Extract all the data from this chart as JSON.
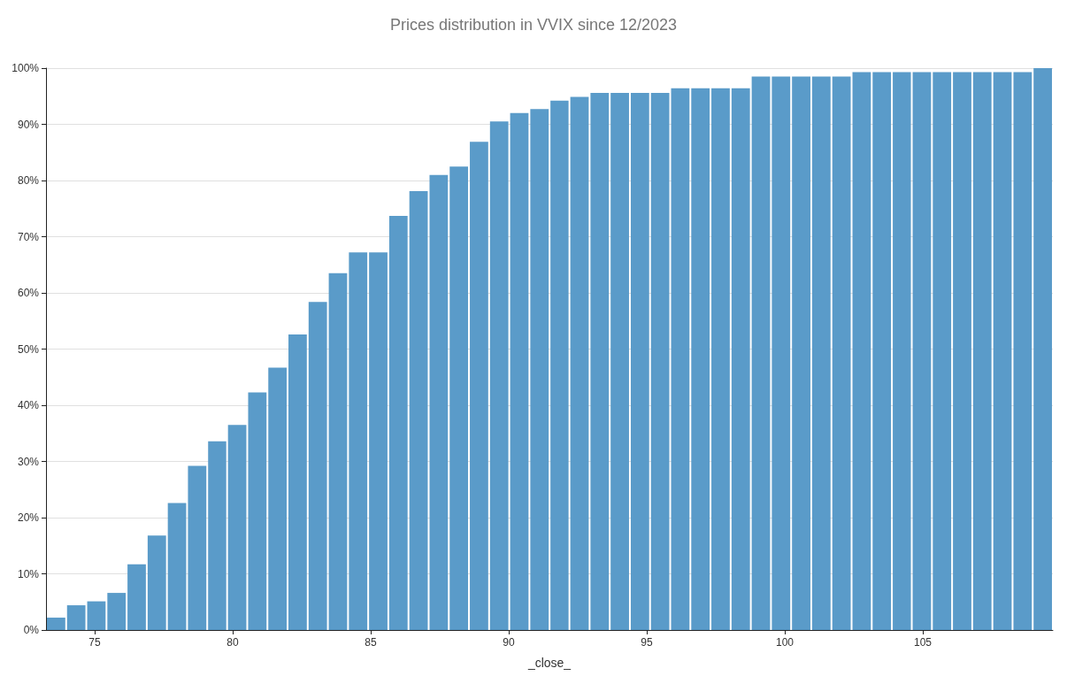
{
  "chart_data": {
    "type": "histogram",
    "title": "Prices distribution in VVIX since 12/2023",
    "xlabel": "_close_",
    "bins": [
      73.24,
      73.97,
      74.7,
      75.43,
      76.16,
      76.89,
      77.62,
      78.35,
      79.08,
      79.8,
      80.53,
      81.26,
      81.99,
      82.72,
      83.45,
      84.18,
      84.91,
      85.64,
      86.37,
      87.1,
      87.83,
      88.56,
      89.29,
      90.02,
      90.75,
      91.48,
      92.2,
      92.93,
      93.66,
      94.39,
      95.12,
      95.85,
      96.58,
      97.31,
      98.04,
      98.77,
      99.5,
      100.23,
      100.96,
      101.69,
      102.42,
      103.15,
      103.88,
      104.6,
      105.33,
      106.06,
      106.79,
      107.52,
      108.25,
      108.98,
      109.71
    ],
    "values": [
      2.2,
      4.4,
      5.1,
      6.6,
      11.7,
      16.8,
      22.6,
      29.2,
      33.6,
      36.5,
      42.3,
      46.7,
      52.6,
      58.4,
      63.5,
      67.2,
      67.2,
      73.7,
      78.1,
      81.0,
      82.5,
      86.9,
      90.5,
      92.0,
      92.7,
      94.2,
      94.9,
      95.6,
      95.6,
      95.6,
      95.6,
      96.4,
      96.4,
      96.4,
      96.4,
      98.5,
      98.5,
      98.5,
      98.5,
      98.5,
      99.3,
      99.3,
      99.3,
      99.3,
      99.3,
      99.3,
      99.3,
      99.3,
      99.3,
      100
    ],
    "color": "#5a9bc9",
    "xlim": [
      73.24,
      109.71
    ],
    "xticks": [
      75,
      80,
      85,
      90,
      95,
      100,
      105
    ],
    "ylim": [
      0,
      100
    ],
    "yticks": [
      {
        "value": 0,
        "label": "0%"
      },
      {
        "value": 10,
        "label": "10%"
      },
      {
        "value": 20,
        "label": "20%"
      },
      {
        "value": 30,
        "label": "30%"
      },
      {
        "value": 40,
        "label": "40%"
      },
      {
        "value": 50,
        "label": "50%"
      },
      {
        "value": 60,
        "label": "60%"
      },
      {
        "value": 70,
        "label": "70%"
      },
      {
        "value": 80,
        "label": "80%"
      },
      {
        "value": 90,
        "label": "90%"
      },
      {
        "value": 100,
        "label": "100%"
      }
    ],
    "grid": "y"
  }
}
